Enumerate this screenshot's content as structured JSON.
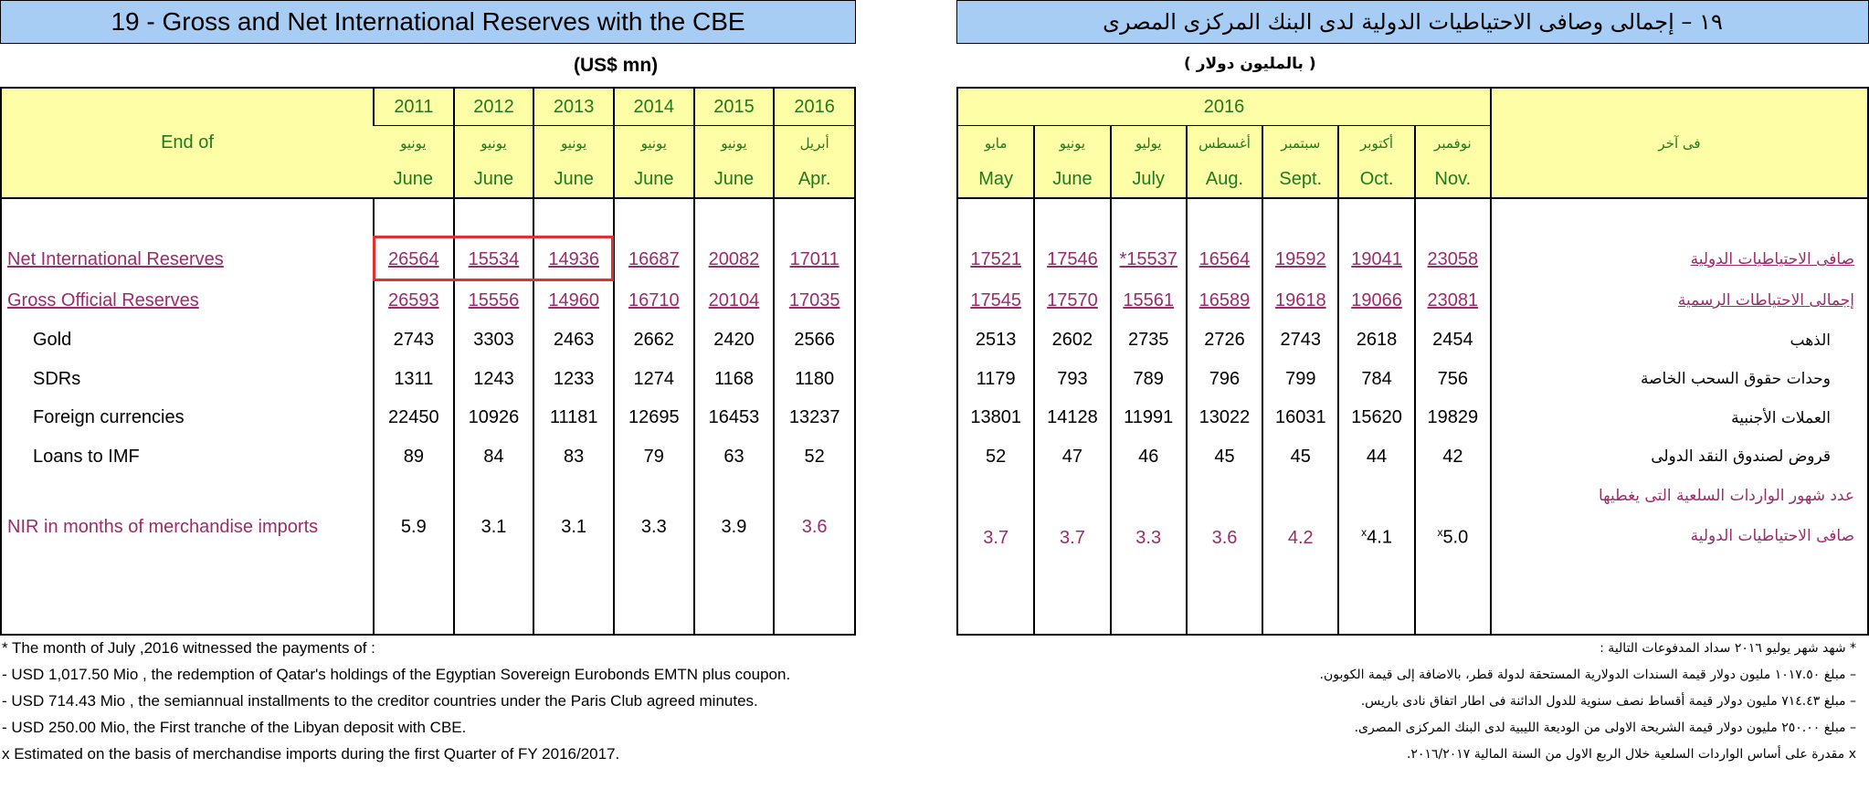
{
  "title": {
    "left": "19 - Gross and Net International Reserves with the CBE",
    "right": "١٩ – إجمالى وصافى الاحتياطيات الدولية لدى البنك المركزى المصرى"
  },
  "unit": {
    "left": "(US$ mn)",
    "right": "( بالمليون دولار )"
  },
  "left_table": {
    "row_header": "End of",
    "columns": [
      {
        "year": "2011",
        "month_ar": "يونيو",
        "month_en": "June"
      },
      {
        "year": "2012",
        "month_ar": "يونيو",
        "month_en": "June"
      },
      {
        "year": "2013",
        "month_ar": "يونيو",
        "month_en": "June"
      },
      {
        "year": "2014",
        "month_ar": "يونيو",
        "month_en": "June"
      },
      {
        "year": "2015",
        "month_ar": "يونيو",
        "month_en": "June"
      },
      {
        "year": "2016",
        "month_ar": "أبريل",
        "month_en": "Apr."
      }
    ],
    "rows": {
      "nir": {
        "label": "Net International Reserves",
        "values": [
          "26564",
          "15534",
          "14936",
          "16687",
          "20082",
          "17011"
        ]
      },
      "gor": {
        "label": "Gross Official Reserves",
        "values": [
          "26593",
          "15556",
          "14960",
          "16710",
          "20104",
          "17035"
        ]
      },
      "gold": {
        "label": "Gold",
        "values": [
          "2743",
          "3303",
          "2463",
          "2662",
          "2420",
          "2566"
        ]
      },
      "sdr": {
        "label": "SDRs",
        "values": [
          "1311",
          "1243",
          "1233",
          "1274",
          "1168",
          "1180"
        ]
      },
      "fx": {
        "label": "Foreign currencies",
        "values": [
          "22450",
          "10926",
          "11181",
          "12695",
          "16453",
          "13237"
        ]
      },
      "imf": {
        "label": "Loans to IMF",
        "values": [
          "89",
          "84",
          "83",
          "79",
          "63",
          "52"
        ]
      },
      "months": {
        "label": "NIR in months of merchandise imports",
        "values": [
          "5.9",
          "3.1",
          "3.1",
          "3.3",
          "3.9",
          "3.6"
        ]
      }
    }
  },
  "right_table": {
    "year": "2016",
    "row_header": "فى آخر",
    "columns": [
      {
        "month_ar": "مايو",
        "month_en": "May"
      },
      {
        "month_ar": "يونيو",
        "month_en": "June"
      },
      {
        "month_ar": "يوليو",
        "month_en": "July"
      },
      {
        "month_ar": "أغسطس",
        "month_en": "Aug."
      },
      {
        "month_ar": "سبتمبر",
        "month_en": "Sept."
      },
      {
        "month_ar": "أكتوبر",
        "month_en": "Oct."
      },
      {
        "month_ar": "نوفمبر",
        "month_en": "Nov."
      }
    ],
    "rows": {
      "nir": {
        "label": "صافى الاحتياطيات الدولية",
        "values": [
          "17521",
          "17546",
          "*15537",
          "16564",
          "19592",
          "19041",
          "23058"
        ]
      },
      "gor": {
        "label": "إجمالى الاحتياطات الرسمية",
        "values": [
          "17545",
          "17570",
          "15561",
          "16589",
          "19618",
          "19066",
          "23081"
        ]
      },
      "gold": {
        "label": "الذهب",
        "values": [
          "2513",
          "2602",
          "2735",
          "2726",
          "2743",
          "2618",
          "2454"
        ]
      },
      "sdr": {
        "label": "وحدات حقوق السحب الخاصة",
        "values": [
          "1179",
          "793",
          "789",
          "796",
          "799",
          "784",
          "756"
        ]
      },
      "fx": {
        "label": "العملات الأجنبية",
        "values": [
          "13801",
          "14128",
          "11991",
          "13022",
          "16031",
          "15620",
          "19829"
        ]
      },
      "imf": {
        "label": "قروض لصندوق النقد الدولى",
        "values": [
          "52",
          "47",
          "46",
          "45",
          "45",
          "44",
          "42"
        ]
      },
      "months": {
        "label_line1": "عدد شهور الواردات السلعية التى يغطيها",
        "label_line2": "صافى الاحتياطيات الدولية",
        "values": [
          "3.7",
          "3.7",
          "3.3",
          "3.6",
          "4.2",
          "4.1",
          "5.0"
        ],
        "marker": "x"
      }
    }
  },
  "notes_en": [
    "* The month of July ,2016 witnessed the payments of :",
    "- USD 1,017.50 Mio , the redemption of Qatar's holdings of the Egyptian Sovereign Eurobonds EMTN plus coupon.",
    "- USD 714.43 Mio , the semiannual installments to the creditor countries under the Paris Club agreed minutes.",
    "- USD 250.00 Mio, the First tranche of the Libyan deposit with CBE.",
    "x  Estimated on the basis of merchandise imports during the first Quarter of FY 2016/2017."
  ],
  "notes_ar": [
    "* شهد شهر يوليو ٢٠١٦ سداد المدفوعات التالية :",
    "– مبلغ ١٠١٧.٥٠ مليون دولار قيمة السندات الدولارية المستحقة لدولة قطر، بالاضافة إلى قيمة الكوبون.",
    "– مبلغ ٧١٤.٤٣ مليون دولار قيمة أقساط نصف سنوية للدول الدائنة فى اطار اتفاق نادى باريس.",
    "– مبلغ ٢٥٠.٠٠ مليون دولار قيمة الشريحة الاولى من الوديعة الليبية لدى البنك المركزى المصرى.",
    "x مقدرة على أساس الواردات السلعية خلال الربع الاول من السنة المالية ٢٠١٦/٢٠١٧."
  ],
  "highlight_color": "#e03030"
}
